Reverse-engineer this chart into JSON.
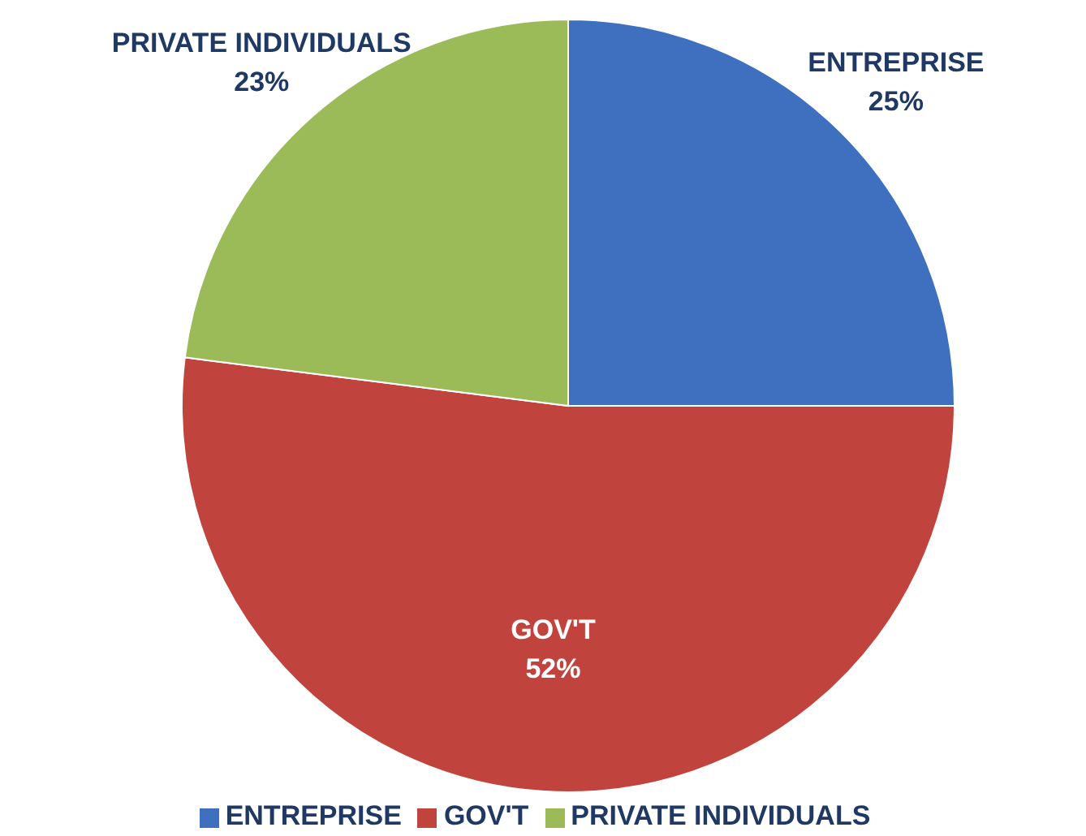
{
  "chart_data": {
    "type": "pie",
    "categories": [
      "ENTREPRISE",
      "GOV'T",
      "PRIVATE INDIVIDUALS"
    ],
    "values": [
      25,
      52,
      23
    ],
    "colors": [
      "#3f6fbf",
      "#c0443d",
      "#9bbb59"
    ],
    "value_labels": [
      "25%",
      "52%",
      "23%"
    ],
    "legend": "bottom"
  }
}
